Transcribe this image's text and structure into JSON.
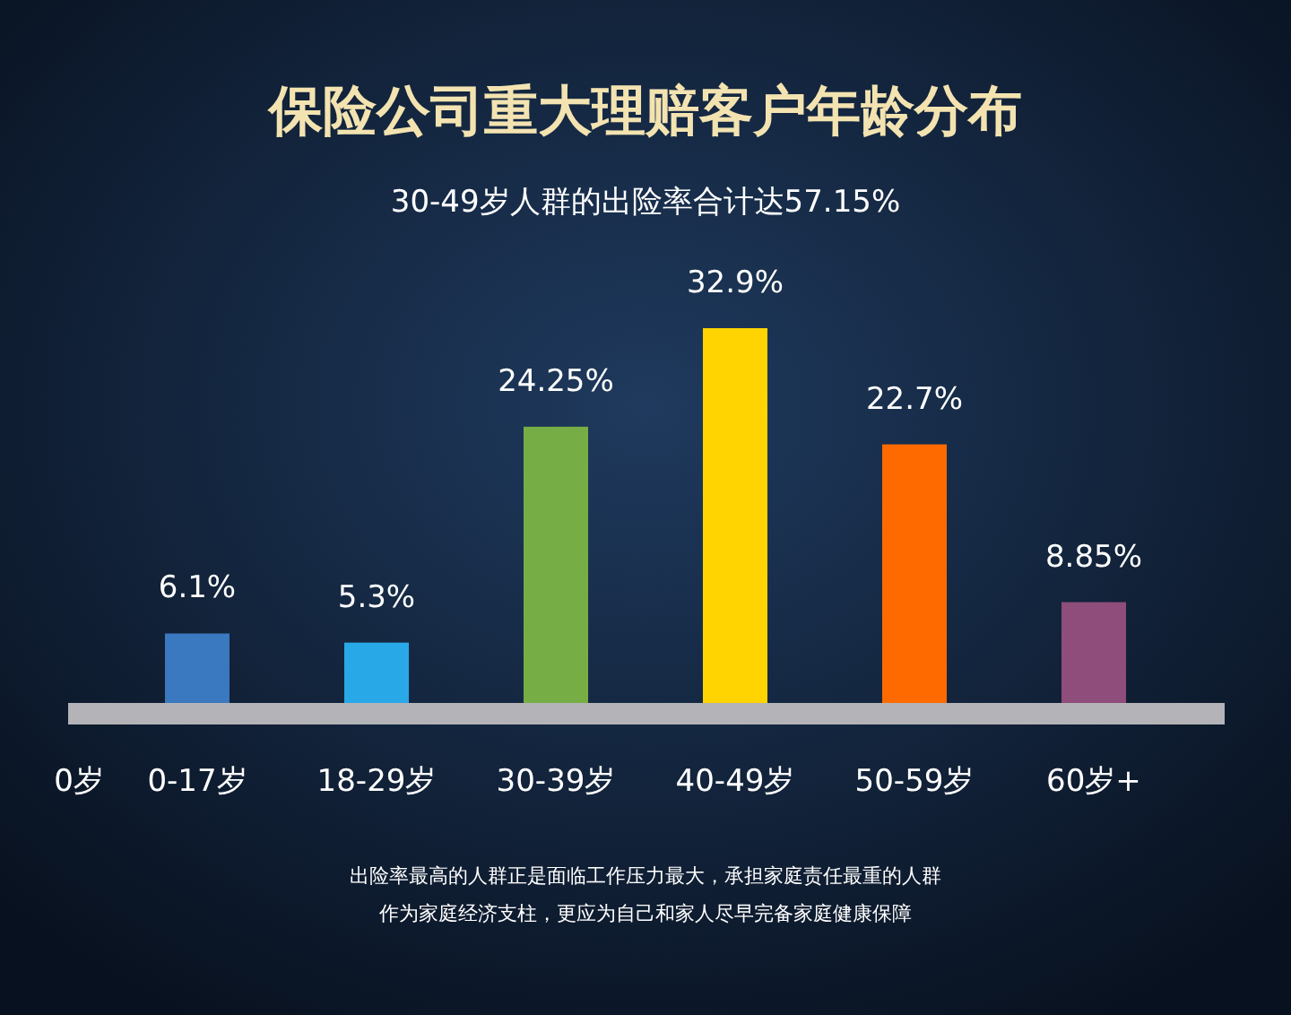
{
  "chart_data": {
    "type": "bar",
    "title": "保险公司重大理赔客户年龄分布",
    "subtitle": "30-49岁人群的出险率合计达57.15%",
    "categories": [
      "0-17岁",
      "18-29岁",
      "30-39岁",
      "40-49岁",
      "50-59岁",
      "60岁+"
    ],
    "values": [
      6.1,
      5.3,
      24.25,
      32.9,
      22.7,
      8.85
    ],
    "colors": [
      "#3a78c0",
      "#29a8e8",
      "#76ae45",
      "#ffd400",
      "#ff6a00",
      "#8e4d7a"
    ],
    "value_labels": [
      "6.1%",
      "5.3%",
      "24.25%",
      "32.9%",
      "22.7%",
      "8.85%"
    ],
    "annotations": [
      "0岁",
      "出险率最高的人群正是面临工作压力最大，承担家庭责任最重的人群",
      "作为家庭经济支柱，更应为自己和家人尽早完备家庭健康保障"
    ]
  }
}
